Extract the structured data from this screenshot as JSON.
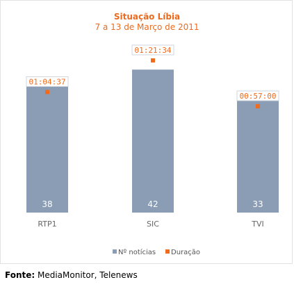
{
  "chart_data": {
    "type": "bar",
    "title": "Situação Líbia",
    "subtitle": "7 a 13 de Março de 2011",
    "categories": [
      "RTP1",
      "SIC",
      "TVI"
    ],
    "series": [
      {
        "name": "Nº notícias",
        "values": [
          38,
          42,
          33
        ],
        "color": "#8a9db5"
      },
      {
        "name": "Duração",
        "values": [
          "01:04:37",
          "01:21:34",
          "00:57:00"
        ],
        "seconds": [
          3877,
          4894,
          3420
        ],
        "color": "#f26a1b"
      }
    ],
    "legend_position": "bottom",
    "grid": false
  },
  "source": {
    "label": "Fonte:",
    "text": " MediaMonitor, Telenews"
  }
}
